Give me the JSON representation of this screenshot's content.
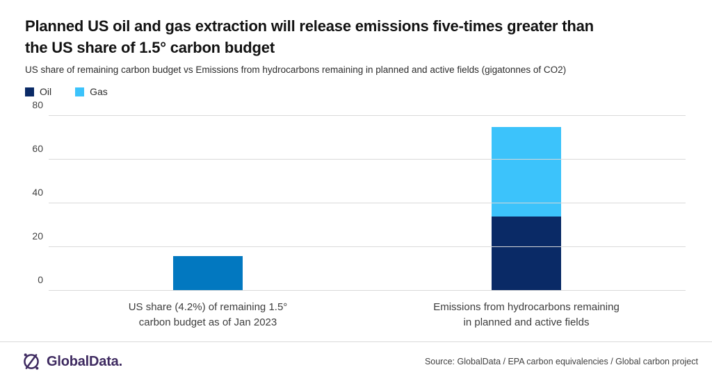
{
  "page": {
    "title_line1": "Planned US oil and gas extraction will release emissions five-times greater than",
    "title_line2": "the US share of 1.5° carbon budget",
    "subtitle": "US share of remaining carbon budget vs Emissions from hydrocarbons remaining in planned and active fields (gigatonnes of CO2)"
  },
  "legend": {
    "items": [
      {
        "label": "Oil",
        "color": "#0a2a66"
      },
      {
        "label": "Gas",
        "color": "#3cc3fb"
      }
    ]
  },
  "chart_data": {
    "type": "bar",
    "stacked": true,
    "title": "Planned US oil and gas extraction will release emissions five-times greater than the US share of 1.5° carbon budget",
    "subtitle": "US share of remaining carbon budget vs Emissions from hydrocarbons remaining in planned and active fields",
    "units": "gigatonnes of CO2",
    "ylim": [
      0,
      80
    ],
    "yticks": [
      0,
      20,
      40,
      60,
      80
    ],
    "grid": "horizontal-light-gray",
    "legend_position": "top-left",
    "categories": [
      [
        "US share (4.2%) of remaining 1.5°",
        "carbon budget as of Jan 2023"
      ],
      [
        "Emissions from hydrocarbons remaining",
        "in planned and active fields"
      ]
    ],
    "bars": [
      {
        "total": 16,
        "segments": [
          {
            "name": "US share of 1.5° carbon budget",
            "value": 16,
            "color": "#0278c0"
          }
        ]
      },
      {
        "total": 75,
        "segments": [
          {
            "name": "Oil",
            "value": 34,
            "color": "#0a2a66"
          },
          {
            "name": "Gas",
            "value": 41,
            "color": "#3cc3fb"
          }
        ]
      }
    ]
  },
  "footer": {
    "brand": "GlobalData.",
    "brand_color": "#3e2a60",
    "source": "Source: GlobalData / EPA carbon equivalencies  / Global carbon project"
  }
}
